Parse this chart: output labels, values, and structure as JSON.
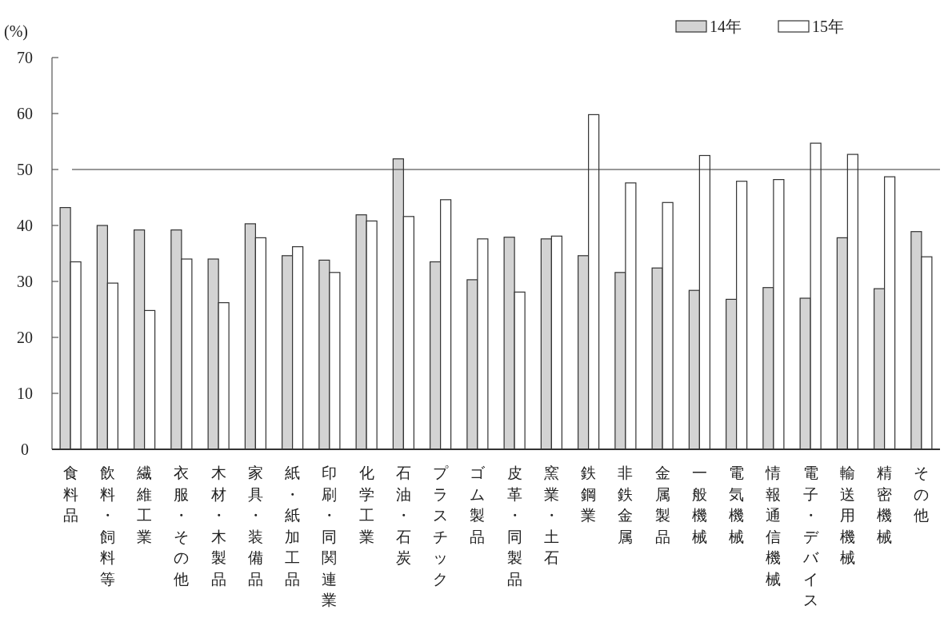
{
  "chart_data": {
    "type": "bar",
    "ylabel": "(%)",
    "categories": [
      "食料品",
      "飲料・飼料等",
      "繊維工業",
      "衣服・その他",
      "木材・木製品",
      "家具・装備品",
      "紙・紙加工品",
      "印刷・同関連業",
      "化学工業",
      "石油・石炭",
      "プラスチック",
      "ゴム製品",
      "皮革・同製品",
      "窯業・土石",
      "鉄鋼業",
      "非鉄金属",
      "金属製品",
      "一般機械",
      "電気機械",
      "情報通信機械",
      "電子・デバイス",
      "輸送用機械",
      "精密機械",
      "その他"
    ],
    "series": [
      {
        "name": "14年",
        "color": "#d3d3d3",
        "values": [
          43.2,
          40.0,
          39.2,
          39.2,
          34.0,
          40.3,
          34.6,
          33.8,
          41.9,
          51.9,
          33.5,
          30.3,
          37.9,
          37.6,
          34.6,
          31.6,
          32.4,
          28.4,
          26.8,
          28.9,
          27.0,
          37.8,
          28.7,
          38.9
        ]
      },
      {
        "name": "15年",
        "color": "#ffffff",
        "values": [
          33.5,
          29.7,
          24.8,
          34.0,
          26.2,
          37.8,
          36.2,
          31.6,
          40.8,
          41.6,
          44.6,
          37.6,
          28.1,
          38.1,
          59.8,
          47.6,
          44.1,
          52.5,
          47.9,
          48.2,
          54.7,
          52.7,
          48.7,
          34.4
        ]
      }
    ],
    "ylim": [
      0,
      70
    ],
    "yticks": [
      0,
      10,
      20,
      30,
      40,
      50,
      60,
      70
    ],
    "ref_lines": [
      {
        "axis": "y",
        "value": 50,
        "color": "#333333"
      }
    ],
    "legend": "top right",
    "grid": false
  }
}
